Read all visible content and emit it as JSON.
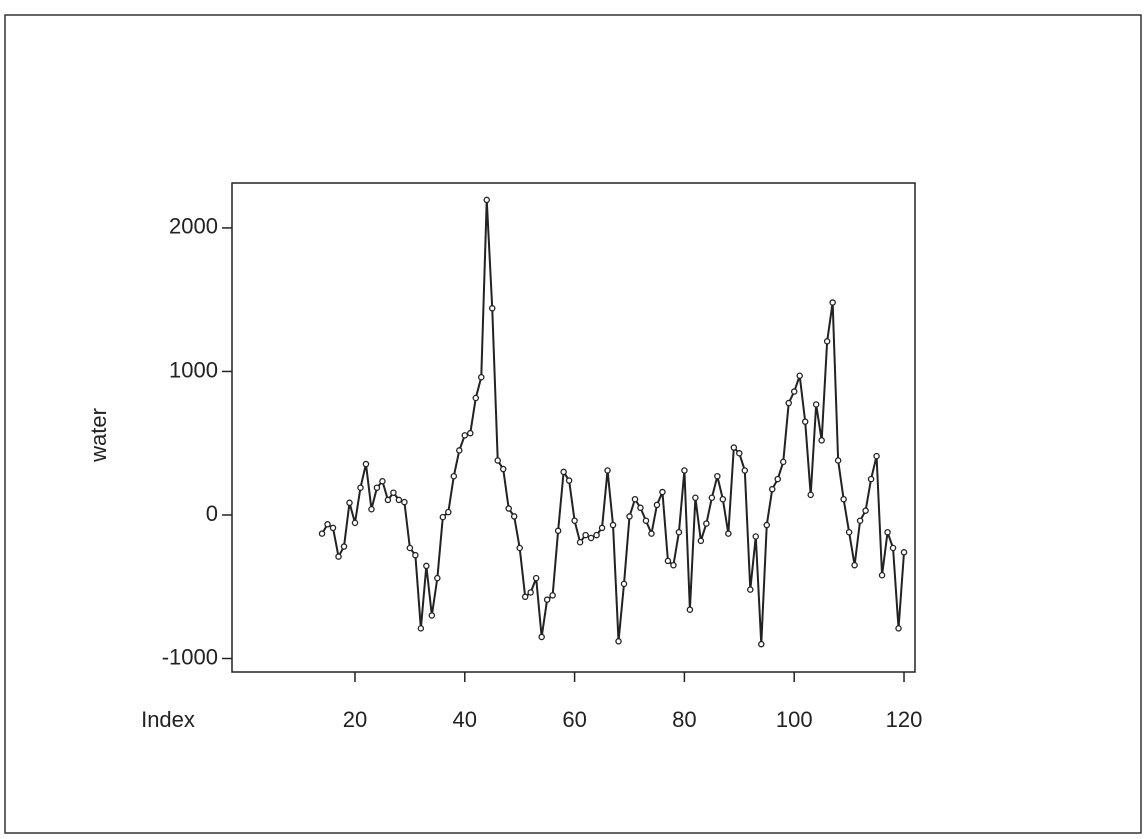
{
  "chart_data": {
    "type": "line",
    "x_label": "Index",
    "y_label": "water",
    "x": [
      14,
      15,
      16,
      17,
      18,
      19,
      20,
      21,
      22,
      23,
      24,
      25,
      26,
      27,
      28,
      29,
      30,
      31,
      32,
      33,
      34,
      35,
      36,
      37,
      38,
      39,
      40,
      41,
      42,
      43,
      44,
      45,
      46,
      47,
      48,
      49,
      50,
      51,
      52,
      53,
      54,
      55,
      56,
      57,
      58,
      59,
      60,
      61,
      62,
      63,
      64,
      65,
      66,
      67,
      68,
      69,
      70,
      71,
      72,
      73,
      74,
      75,
      76,
      77,
      78,
      79,
      80,
      81,
      82,
      83,
      84,
      85,
      86,
      87,
      88,
      89,
      90,
      91,
      92,
      93,
      94,
      95,
      96,
      97,
      98,
      99,
      100,
      101,
      102,
      103,
      104,
      105,
      106,
      107,
      108,
      109,
      110,
      111,
      112,
      113,
      114,
      115,
      116,
      117,
      118,
      119,
      120
    ],
    "series": [
      {
        "color": "#222222",
        "values": [
          -130,
          -65,
          -90,
          -290,
          -220,
          85,
          -55,
          190,
          355,
          40,
          190,
          235,
          105,
          155,
          105,
          90,
          -230,
          -280,
          -790,
          -355,
          -700,
          -440,
          -15,
          20,
          270,
          450,
          555,
          570,
          815,
          960,
          2195,
          1440,
          380,
          320,
          45,
          -10,
          -230,
          -570,
          -540,
          -440,
          -850,
          -590,
          -560,
          -110,
          300,
          240,
          -40,
          -190,
          -140,
          -160,
          -140,
          -90,
          310,
          -70,
          -880,
          -480,
          -10,
          110,
          50,
          -40,
          -130,
          70,
          160,
          -320,
          -350,
          -120,
          310,
          -660,
          120,
          -180,
          -60,
          120,
          270,
          110,
          -130,
          470,
          430,
          310,
          -520,
          -150,
          -900,
          -70,
          180,
          250,
          370,
          780,
          860,
          970,
          650,
          140,
          770,
          520,
          1210,
          1480,
          380,
          110,
          -120,
          -350,
          -40,
          30,
          250,
          410,
          -420,
          -120,
          -230,
          -790,
          -260
        ]
      }
    ],
    "xlim": [
      -2.4,
      122
    ],
    "ylim": [
      -1094,
      2313
    ],
    "xticks": [
      20,
      40,
      60,
      80,
      100,
      120
    ],
    "yticks": [
      -1000,
      0,
      1000,
      2000
    ]
  }
}
